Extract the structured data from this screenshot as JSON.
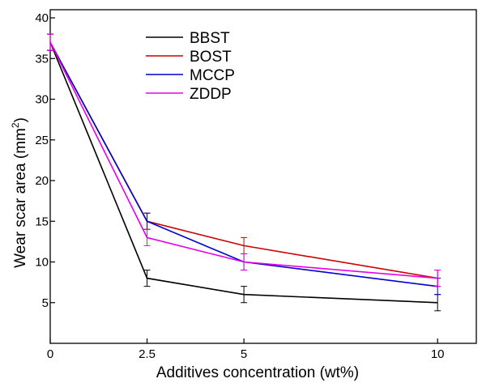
{
  "chart_data": {
    "type": "line",
    "title": "",
    "xlabel": "Additives concentration (wt%)",
    "ylabel_main": "Wear scar area (mm",
    "ylabel_sup": "2",
    "ylabel_tail": ")",
    "xlim": [
      0,
      11
    ],
    "ylim": [
      0,
      41
    ],
    "x_ticks": [
      0,
      2.5,
      5,
      10
    ],
    "x_tick_labels": [
      "0",
      "2.5",
      "5",
      "10"
    ],
    "y_ticks": [
      5,
      10,
      15,
      20,
      25,
      30,
      35,
      40
    ],
    "y_tick_labels": [
      "5",
      "10",
      "15",
      "20",
      "25",
      "30",
      "35",
      "40"
    ],
    "legend_position": "top-left",
    "grid": false,
    "x": [
      0,
      2.5,
      5,
      10
    ],
    "series": [
      {
        "name": "BBST",
        "color": "#000000",
        "values": [
          37,
          8,
          6,
          5
        ],
        "errors": [
          1,
          1,
          1,
          1
        ]
      },
      {
        "name": "BOST",
        "color": "#cc0000",
        "values": [
          37,
          15,
          12,
          8
        ],
        "errors": [
          1,
          1,
          1,
          1
        ]
      },
      {
        "name": "MCCP",
        "color": "#0000cc",
        "values": [
          37,
          15,
          10,
          7
        ],
        "errors": [
          1,
          1,
          1,
          1
        ]
      },
      {
        "name": "ZDDP",
        "color": "#e600e6",
        "values": [
          37,
          13,
          10,
          8
        ],
        "errors": [
          1,
          1,
          1,
          1
        ]
      }
    ]
  }
}
